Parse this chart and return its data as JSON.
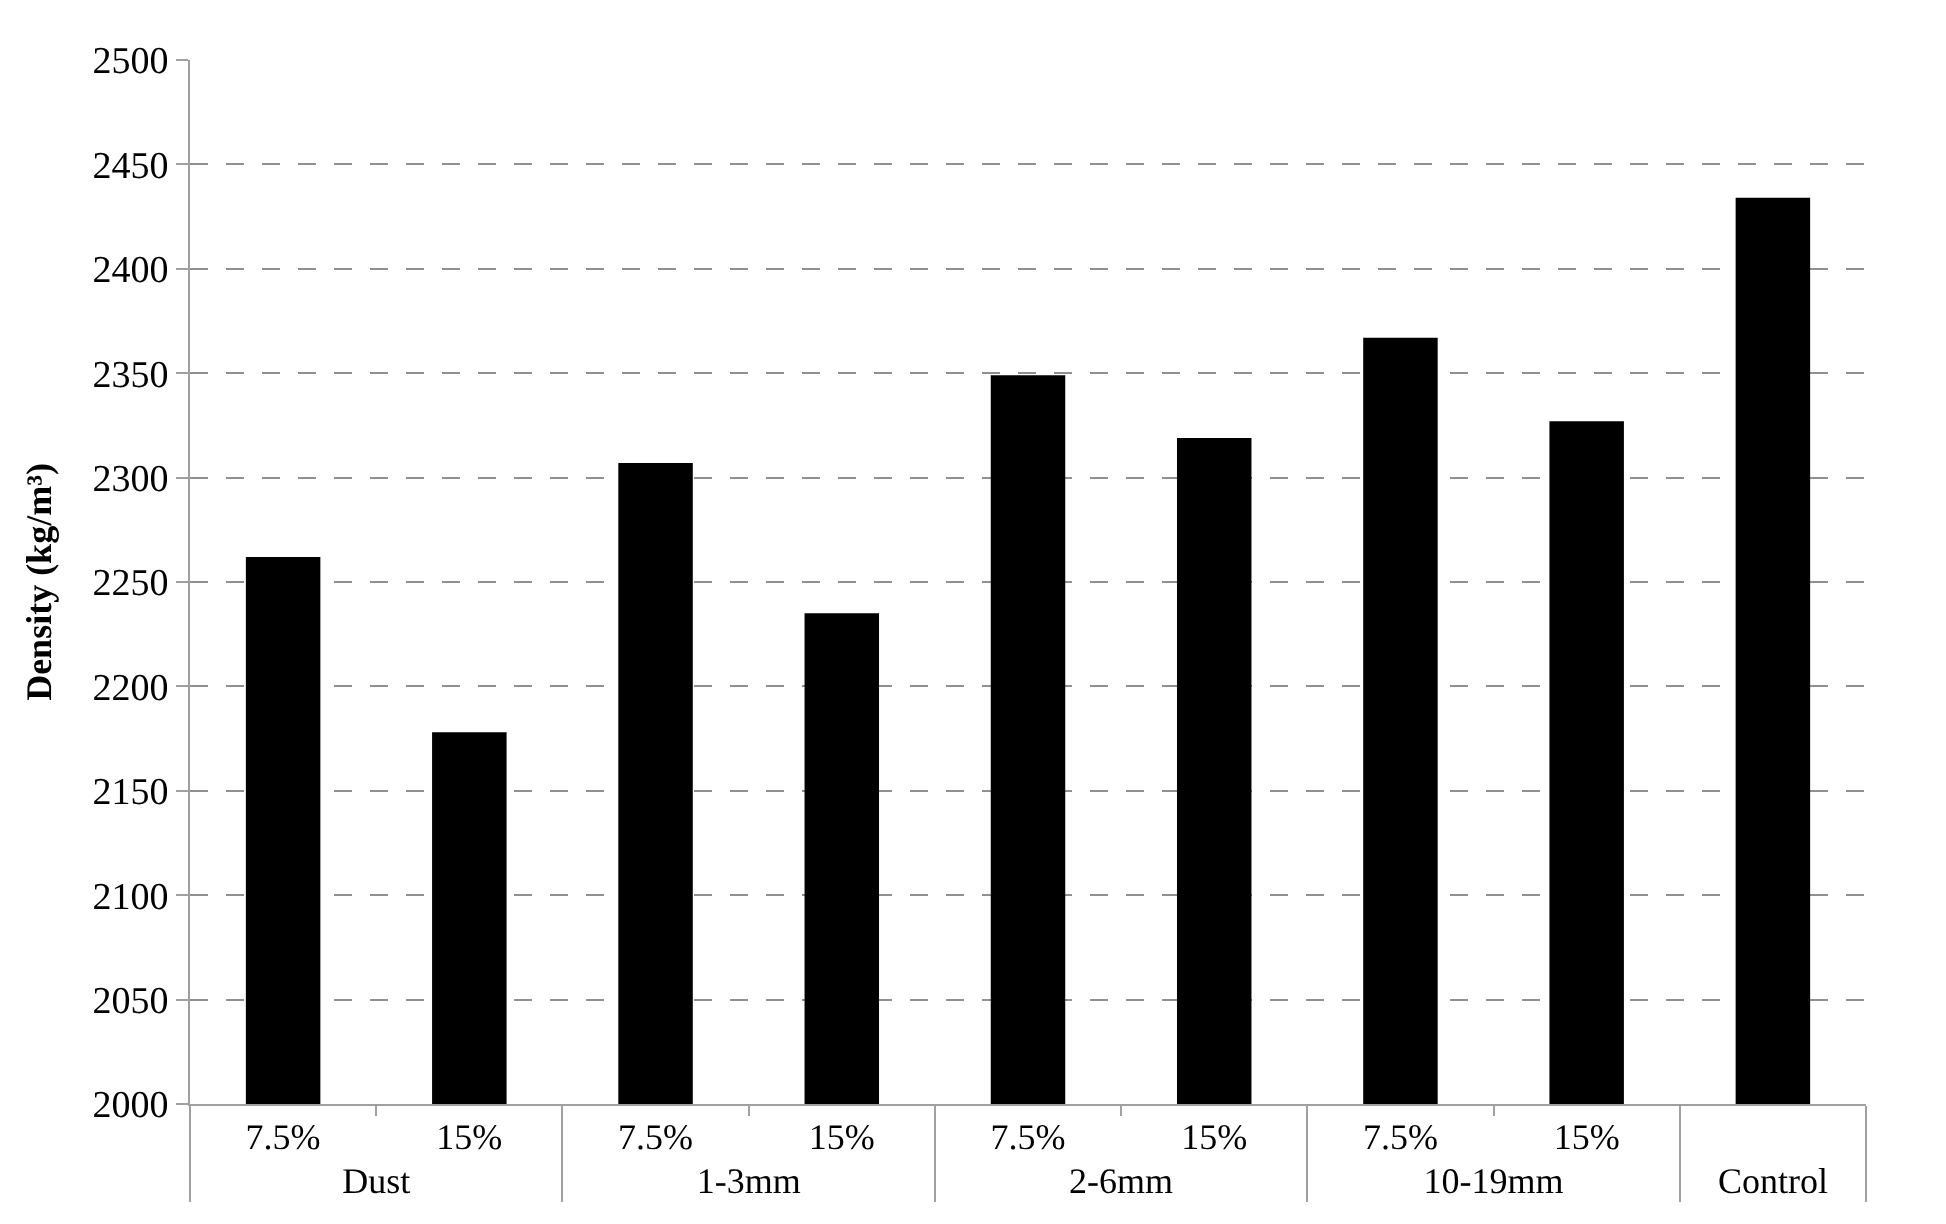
{
  "chart_data": {
    "type": "bar",
    "ylabel": "Density (kg/m³)",
    "categories": [
      "7.5%",
      "15%",
      "7.5%",
      "15%",
      "7.5%",
      "15%",
      "7.5%",
      "15%",
      null
    ],
    "annotations": [
      "Dust",
      "1-3mm",
      "2-6mm",
      "10-19mm",
      "Control"
    ],
    "values": [
      2262,
      2178,
      2307,
      2235,
      2349,
      2319,
      2367,
      2327,
      2434
    ],
    "color": "#000000",
    "ylim": [
      2000,
      2500
    ],
    "yticks": [
      2000,
      2050,
      2100,
      2150,
      2200,
      2250,
      2300,
      2350,
      2400,
      2450,
      2500
    ],
    "grid": "y",
    "legend": false
  }
}
